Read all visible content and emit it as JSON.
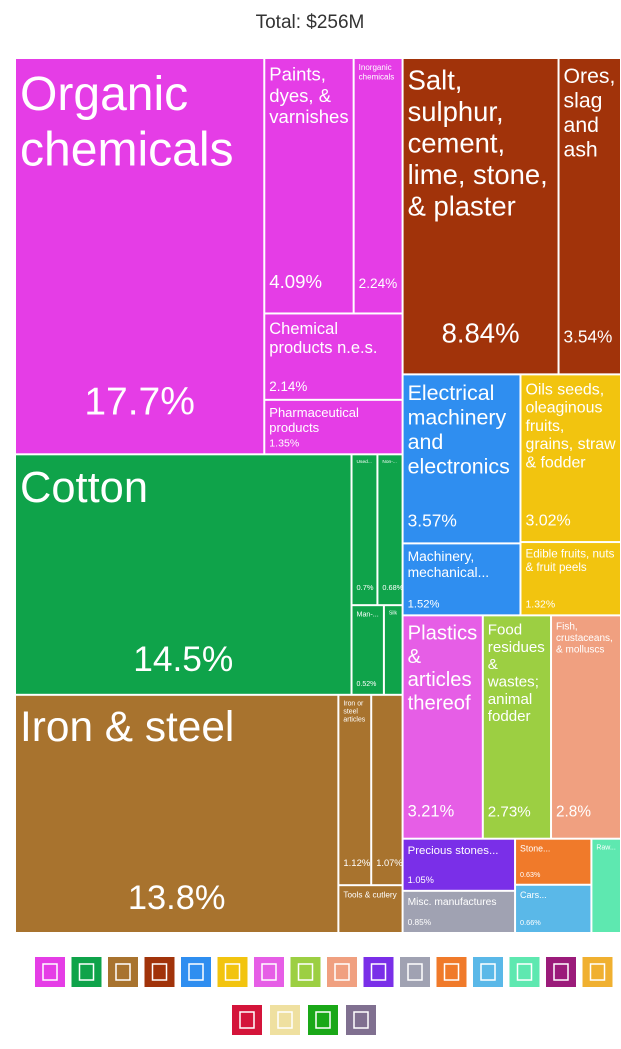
{
  "chart_data": {
    "type": "treemap",
    "title": "Total: $256M",
    "categories": [
      "Organic chemicals",
      "Paints, dyes, & varnishes",
      "Inorganic chemicals",
      "Chemical products n.e.s.",
      "Pharmaceutical products",
      "Salt, sulphur, cement, lime, stone, & plaster",
      "Ores, slag and ash",
      "Cotton",
      "Used...",
      "Non-...",
      "Man-...",
      "Silk",
      "Iron & steel",
      "Iron or steel articles",
      null,
      "Tools & cutlery",
      "Electrical machinery and electronics",
      "Machinery, mechanical...",
      "Oils seeds, oleaginous fruits, grains, straw & fodder",
      "Edible fruits, nuts & fruit peels",
      "Plastics & articles thereof",
      "Food residues & wastes; animal fodder",
      "Fish, crustaceans, & molluscs",
      "Precious stones...",
      "Stone...",
      "Misc. manufactures",
      "Cars...",
      "Raw..."
    ],
    "values": [
      17.7,
      4.09,
      2.24,
      2.14,
      1.35,
      8.84,
      3.54,
      14.5,
      0.7,
      0.68,
      0.52,
      0.3,
      13.8,
      1.12,
      1.07,
      0.55,
      3.57,
      1.52,
      3.02,
      1.32,
      3.21,
      2.73,
      2.8,
      1.05,
      0.63,
      0.85,
      0.66,
      0.5
    ],
    "value_labels": [
      "17.7%",
      "4.09%",
      "2.24%",
      "2.14%",
      "1.35%",
      "8.84%",
      "3.54%",
      "14.5%",
      "0.7%",
      "0.68%",
      "0.52%",
      null,
      "13.8%",
      "1.12%",
      "1.07%",
      null,
      "3.57%",
      "1.52%",
      "3.02%",
      "1.32%",
      "3.21%",
      "2.73%",
      "2.8%",
      "1.05%",
      "0.63%",
      "0.85%",
      "0.66%",
      null
    ],
    "colors": [
      "#e53de6",
      "#e53de6",
      "#e53de6",
      "#e53de6",
      "#e53de6",
      "#a1330a",
      "#a1330a",
      "#0fa34a",
      "#0fa34a",
      "#0fa34a",
      "#0fa34a",
      "#0fa34a",
      "#a8732e",
      "#a8732e",
      "#a8732e",
      "#a8732e",
      "#2f8ef0",
      "#2f8ef0",
      "#f2c40f",
      "#f2c40f",
      "#e65ee6",
      "#9ccf42",
      "#f0a080",
      "#7a2fe8",
      "#f07a2a",
      "#a0a2b2",
      "#5ab8e8",
      "#5ee8b0"
    ]
  }
}
